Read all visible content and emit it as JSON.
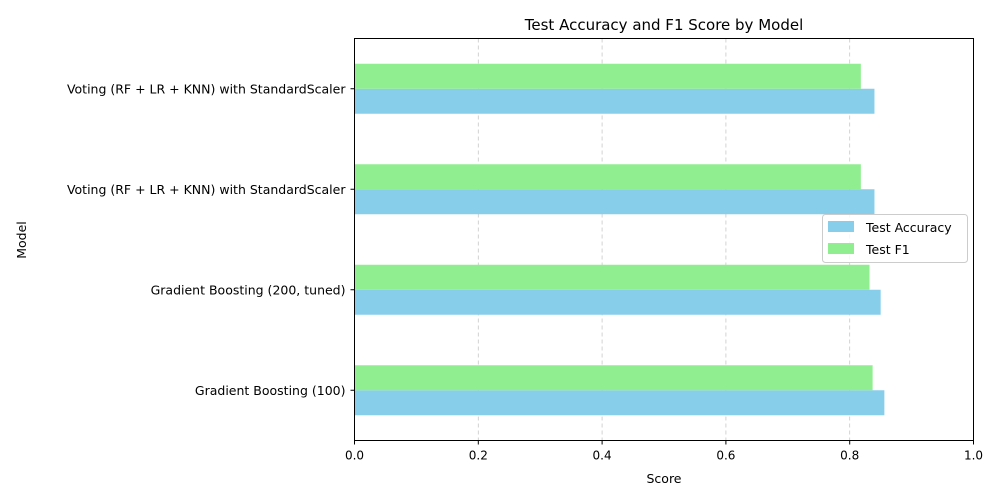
{
  "chart_data": {
    "type": "bar",
    "orientation": "horizontal",
    "title": "Test Accuracy and F1 Score by Model",
    "xlabel": "Score",
    "ylabel": "Model",
    "xlim": [
      0,
      1
    ],
    "xticks": [
      "0.0",
      "0.2",
      "0.4",
      "0.6",
      "0.8",
      "1.0"
    ],
    "grid": "x, dashed",
    "legend_position": "center-right",
    "categories": [
      "Gradient Boosting (100)",
      "Gradient Boosting (200, tuned)",
      "Voting (RF + LR + KNN) with StandardScaler",
      "Voting (RF + LR + KNN) with StandardScaler"
    ],
    "series": [
      {
        "name": "Test Accuracy",
        "color": "#87ceeb",
        "values": [
          0.856,
          0.85,
          0.84,
          0.84
        ]
      },
      {
        "name": "Test F1",
        "color": "#90ee90",
        "values": [
          0.837,
          0.832,
          0.818,
          0.818
        ]
      }
    ]
  }
}
